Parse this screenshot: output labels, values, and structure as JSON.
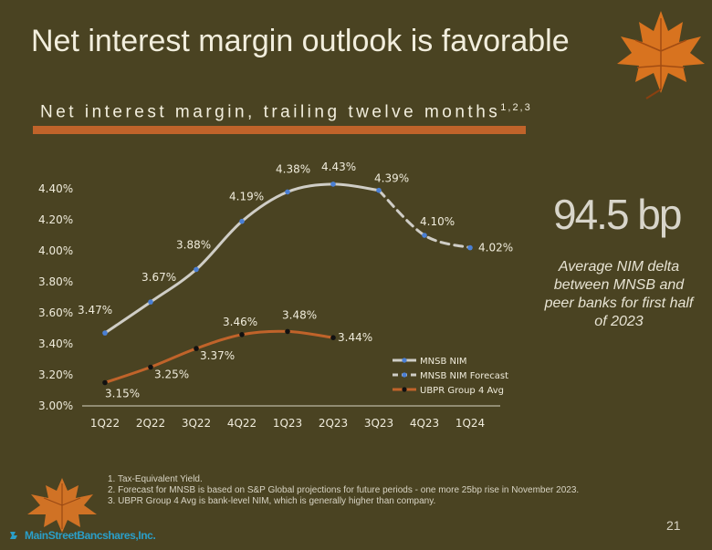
{
  "slide": {
    "title": "Net interest margin outlook is favorable",
    "subtitle": "Net interest margin, trailing twelve months",
    "subtitle_sup": "1,2,3",
    "big_stat": "94.5 bp",
    "stat_description": "Average NIM delta between MNSB and peer banks for first half of 2023",
    "footnotes": [
      "1.  Tax-Equivalent Yield.",
      "2.  Forecast for MNSB is based on S&P Global projections for future periods - one more 25bp rise in November 2023.",
      "3.  UBPR Group 4 Avg is bank-level NIM, which is generally higher than company."
    ],
    "page_number": "21",
    "logo_text": "MainStreetBancshares,Inc.",
    "accent_color": "#c0632a",
    "background_color": "#4a4322"
  },
  "chart_data": {
    "type": "line",
    "title": "",
    "xlabel": "",
    "ylabel": "",
    "categories": [
      "1Q22",
      "2Q22",
      "3Q22",
      "4Q22",
      "1Q23",
      "2Q23",
      "3Q23",
      "4Q23",
      "1Q24"
    ],
    "ylim": [
      3.0,
      4.4
    ],
    "yticks": [
      3.0,
      3.2,
      3.4,
      3.6,
      3.8,
      4.0,
      4.2,
      4.4
    ],
    "ytick_labels": [
      "3.00%",
      "3.20%",
      "3.40%",
      "3.60%",
      "3.80%",
      "4.00%",
      "4.20%",
      "4.40%"
    ],
    "grid": false,
    "legend_position": "bottom-right",
    "series": [
      {
        "name": "MNSB NIM",
        "color": "#cfcdc6",
        "marker_color": "#4a7fd4",
        "style": "solid",
        "values": [
          3.47,
          3.67,
          3.88,
          4.19,
          4.38,
          4.43,
          4.39,
          null,
          null
        ],
        "labels": [
          "3.47%",
          "3.67%",
          "3.88%",
          "4.19%",
          "4.38%",
          "4.43%",
          "4.39%",
          null,
          null
        ]
      },
      {
        "name": "MNSB NIM Forecast",
        "color": "#cfcdc6",
        "marker_color": "#4a7fd4",
        "style": "dashed",
        "values": [
          null,
          null,
          null,
          null,
          null,
          null,
          4.39,
          4.1,
          4.02
        ],
        "labels": [
          null,
          null,
          null,
          null,
          null,
          null,
          null,
          "4.10%",
          "4.02%"
        ]
      },
      {
        "name": "UBPR Group 4 Avg",
        "color": "#c0632a",
        "marker_color": "#111111",
        "style": "solid",
        "values": [
          3.15,
          3.25,
          3.37,
          3.46,
          3.48,
          3.44,
          null,
          null,
          null
        ],
        "labels": [
          "3.15%",
          "3.25%",
          "3.37%",
          "3.46%",
          "3.48%",
          "3.44%",
          null,
          null,
          null
        ]
      }
    ]
  }
}
